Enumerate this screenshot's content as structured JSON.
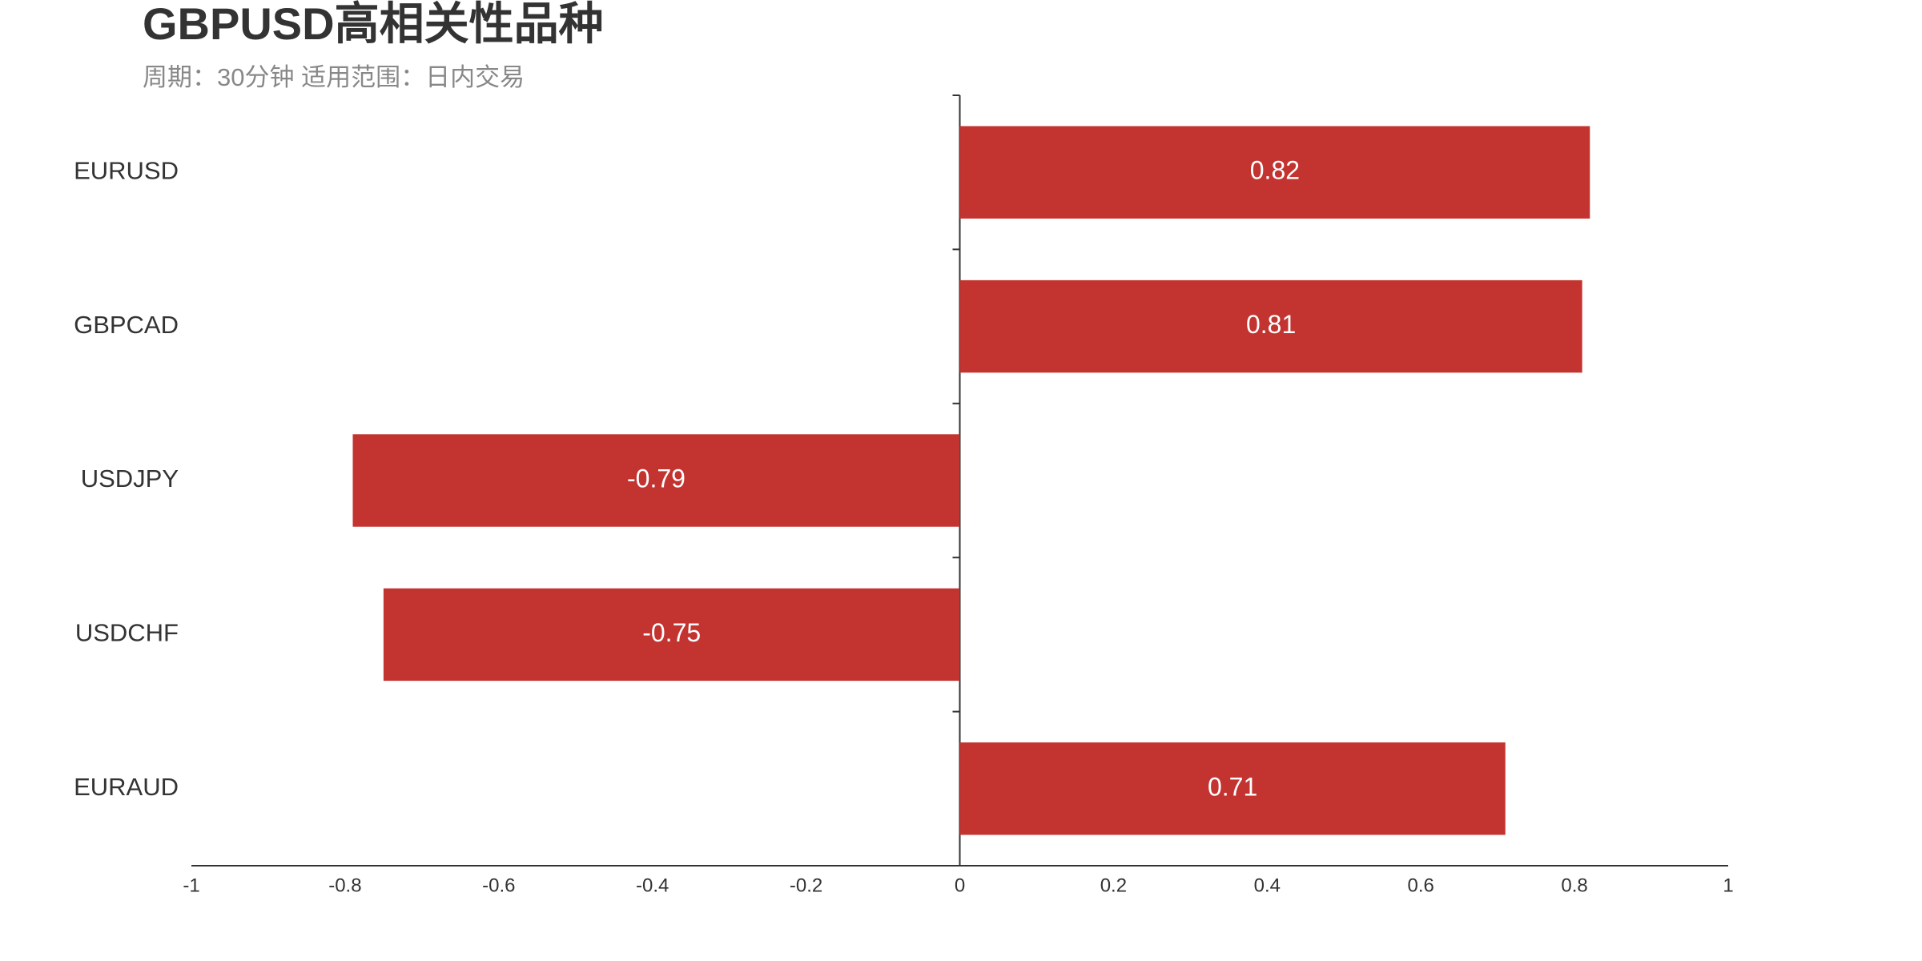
{
  "chart_data": {
    "type": "bar",
    "orientation": "horizontal",
    "title": "GBPUSD高相关性品种",
    "subtitle": "周期：30分钟 适用范围：日内交易",
    "categories": [
      "EURUSD",
      "GBPCAD",
      "USDJPY",
      "USDCHF",
      "EURAUD"
    ],
    "values": [
      0.82,
      0.81,
      -0.79,
      -0.75,
      0.71
    ],
    "color": "#c33431",
    "xlim": [
      -1,
      1
    ],
    "xticks": [
      -1,
      -0.8,
      -0.6,
      -0.4,
      -0.2,
      0,
      0.2,
      0.4,
      0.6,
      0.8,
      1
    ]
  }
}
